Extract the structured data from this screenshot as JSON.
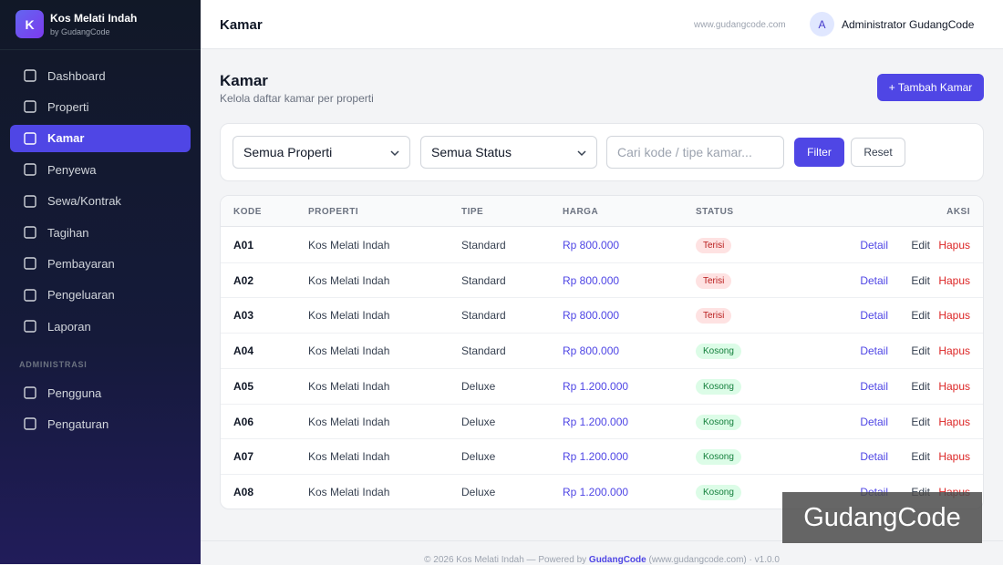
{
  "sidebar": {
    "logo": "K",
    "brand": "Kos Melati Indah",
    "byline": "by GudangCode",
    "menu": [
      "Dashboard",
      "Properti",
      "Kamar",
      "Penyewa",
      "Sewa/Kontrak",
      "Tagihan",
      "Pembayaran",
      "Pengeluaran",
      "Laporan"
    ],
    "section": "ADMINISTRASI",
    "admin_menu": [
      "Pengguna",
      "Pengaturan"
    ]
  },
  "topbar": {
    "title": "Kamar",
    "site": "www.gudangcode.com",
    "avatar": "A",
    "user": "Administrator GudangCode"
  },
  "page": {
    "title": "Kamar",
    "subtitle": "Kelola daftar kamar per properti",
    "add_button": "+ Tambah Kamar"
  },
  "filters": {
    "property": "Semua Properti",
    "status": "Semua Status",
    "search": "Cari kode / tipe kamar...",
    "filter_button": "Filter",
    "reset_button": "Reset"
  },
  "table": {
    "headers": [
      "KODE",
      "PROPERTI",
      "TIPE",
      "HARGA",
      "STATUS",
      "AKSI"
    ],
    "rows": [
      [
        "A01",
        "Kos Melati Indah",
        "Standard",
        "Rp 800.000",
        "Terisi"
      ],
      [
        "A02",
        "Kos Melati Indah",
        "Standard",
        "Rp 800.000",
        "Terisi"
      ],
      [
        "A03",
        "Kos Melati Indah",
        "Standard",
        "Rp 800.000",
        "Terisi"
      ],
      [
        "A04",
        "Kos Melati Indah",
        "Standard",
        "Rp 800.000",
        "Kosong"
      ],
      [
        "A05",
        "Kos Melati Indah",
        "Deluxe",
        "Rp 1.200.000",
        "Kosong"
      ],
      [
        "A06",
        "Kos Melati Indah",
        "Deluxe",
        "Rp 1.200.000",
        "Kosong"
      ],
      [
        "A07",
        "Kos Melati Indah",
        "Deluxe",
        "Rp 1.200.000",
        "Kosong"
      ],
      [
        "A08",
        "Kos Melati Indah",
        "Deluxe",
        "Rp 1.200.000",
        "Kosong"
      ]
    ],
    "actions": [
      "Detail",
      "Edit",
      "Hapus"
    ]
  },
  "footer": {
    "text": "© 2026 Kos Melati Indah — Powered by",
    "link": "GudangCode",
    "rest": "(www.gudangcode.com) · v1.0.0"
  },
  "watermark": "GudangCode"
}
